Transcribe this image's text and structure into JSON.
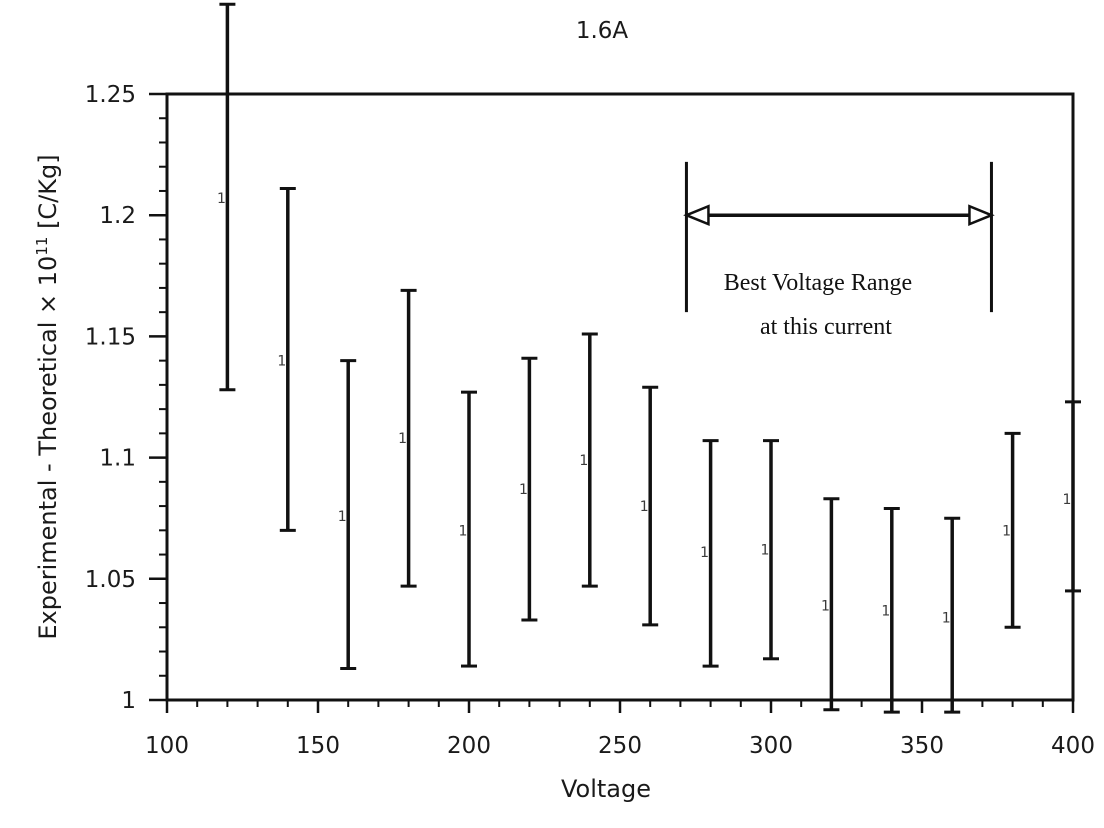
{
  "chart_data": {
    "type": "scatter",
    "title": "1.6A",
    "xlabel": "Voltage",
    "ylabel_prefix": "Experimental - Theoretical × 10",
    "ylabel_exp": "11",
    "ylabel_suffix": " [C/Kg]",
    "xlim": [
      100,
      400
    ],
    "ylim": [
      1,
      1.25
    ],
    "x_ticks": [
      100,
      150,
      200,
      250,
      300,
      350,
      400
    ],
    "y_ticks": [
      1,
      1.05,
      1.1,
      1.15,
      1.2,
      1.25
    ],
    "y_tick_labels": [
      "1",
      "1.05",
      "1.1",
      "1.15",
      "1.2",
      "1.25"
    ],
    "marker_symbol": "1",
    "grid": false,
    "points": [
      {
        "x": 120,
        "y": 1.207,
        "low": 1.128,
        "high": 1.287
      },
      {
        "x": 140,
        "y": 1.14,
        "low": 1.07,
        "high": 1.211
      },
      {
        "x": 160,
        "y": 1.076,
        "low": 1.013,
        "high": 1.14
      },
      {
        "x": 180,
        "y": 1.108,
        "low": 1.047,
        "high": 1.169
      },
      {
        "x": 200,
        "y": 1.07,
        "low": 1.014,
        "high": 1.127
      },
      {
        "x": 220,
        "y": 1.087,
        "low": 1.033,
        "high": 1.141
      },
      {
        "x": 240,
        "y": 1.099,
        "low": 1.047,
        "high": 1.151
      },
      {
        "x": 260,
        "y": 1.08,
        "low": 1.031,
        "high": 1.129
      },
      {
        "x": 280,
        "y": 1.061,
        "low": 1.014,
        "high": 1.107
      },
      {
        "x": 300,
        "y": 1.062,
        "low": 1.017,
        "high": 1.107
      },
      {
        "x": 320,
        "y": 1.039,
        "low": 0.996,
        "high": 1.083
      },
      {
        "x": 340,
        "y": 1.037,
        "low": 0.995,
        "high": 1.079
      },
      {
        "x": 360,
        "y": 1.034,
        "low": 0.995,
        "high": 1.075
      },
      {
        "x": 380,
        "y": 1.07,
        "low": 1.03,
        "high": 1.11
      },
      {
        "x": 400,
        "y": 1.083,
        "low": 1.045,
        "high": 1.123
      }
    ],
    "annotation": {
      "line1": "Best Voltage Range",
      "line2": "at this current",
      "x_start": 272,
      "x_end": 373,
      "arrow_y": 1.2,
      "bar_top": 1.222,
      "bar_bottom": 1.16
    }
  }
}
